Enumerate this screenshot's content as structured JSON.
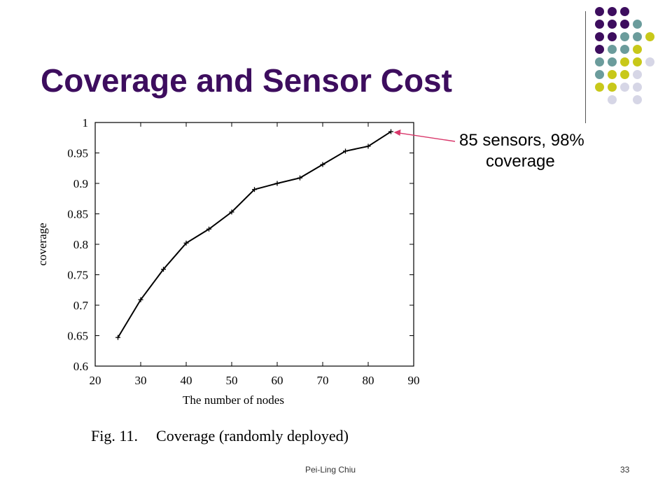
{
  "slide": {
    "title": "Coverage and Sensor Cost",
    "annotation_line1": "85 sensors, 98%",
    "annotation_line2": "coverage",
    "caption_fig": "Fig. 11.",
    "caption_text": "Coverage (randomly deployed)",
    "footer_author": "Pei-Ling Chiu",
    "page_number": "33"
  },
  "colors": {
    "title": "#3d0d5e",
    "dot_purple": "#3d0d5e",
    "dot_teal": "#6b9c9c",
    "dot_yellow": "#c8c81a",
    "dot_lavender": "#d6d6e6",
    "arrow": "#d9386b"
  },
  "decor_dots": [
    [
      "purple",
      "purple",
      "purple",
      null,
      null
    ],
    [
      "purple",
      "purple",
      "purple",
      "teal",
      null
    ],
    [
      "purple",
      "purple",
      "teal",
      "teal",
      "yellow"
    ],
    [
      "purple",
      "teal",
      "teal",
      "yellow",
      null
    ],
    [
      "teal",
      "teal",
      "yellow",
      "yellow",
      "lavender"
    ],
    [
      "teal",
      "yellow",
      "yellow",
      "lavender",
      null
    ],
    [
      "yellow",
      "yellow",
      "lavender",
      "lavender",
      null
    ],
    [
      null,
      "lavender",
      null,
      "lavender",
      null
    ]
  ],
  "chart_data": {
    "type": "line",
    "xlabel": "The number of nodes",
    "ylabel": "coverage",
    "xlim": [
      20,
      90
    ],
    "ylim": [
      0.6,
      1.0
    ],
    "xticks": [
      20,
      30,
      40,
      50,
      60,
      70,
      80,
      90
    ],
    "yticks": [
      0.6,
      0.65,
      0.7,
      0.75,
      0.8,
      0.85,
      0.9,
      0.95,
      1.0
    ],
    "ytick_labels": [
      "0.6",
      "0.65",
      "0.7",
      "0.75",
      "0.8",
      "0.85",
      "0.9",
      "0.95",
      "1"
    ],
    "grid": false,
    "series": [
      {
        "x": [
          25,
          30,
          35,
          40,
          45,
          50,
          55,
          60,
          65,
          70,
          75,
          80,
          85
        ],
        "values": [
          0.647,
          0.709,
          0.759,
          0.802,
          0.825,
          0.853,
          0.89,
          0.9,
          0.909,
          0.931,
          0.953,
          0.961,
          0.985
        ]
      }
    ]
  }
}
